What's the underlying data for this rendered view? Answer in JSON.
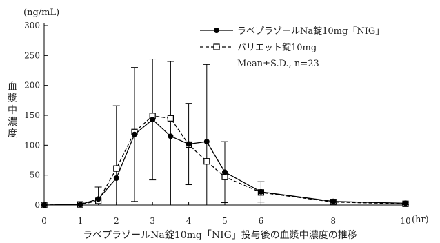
{
  "chart_data": {
    "type": "line",
    "title": "ラベプラゾールNa錠10mg「NIG」投与後の血漿中濃度の推移",
    "ylabel": "血漿中濃度",
    "y_unit": "(ng/mL)",
    "x_unit": "(hr)",
    "xlim": [
      0,
      10
    ],
    "ylim": [
      0,
      300
    ],
    "x_ticks": [
      0,
      1,
      2,
      3,
      4,
      5,
      6,
      8,
      10
    ],
    "y_ticks": [
      0,
      50,
      100,
      150,
      200,
      250,
      300
    ],
    "grid": false,
    "legend_position": "top-right",
    "legend_note": "Mean±S.D., n=23",
    "series": [
      {
        "name": "ラベプラゾールNa錠10mg「NIG」",
        "marker": "filled-circle",
        "line": "solid",
        "x": [
          0,
          1,
          1.5,
          2,
          2.5,
          3,
          3.5,
          4,
          4.5,
          5,
          6,
          8,
          10
        ],
        "y": [
          0,
          1,
          10,
          45,
          118,
          143,
          115,
          102,
          106,
          55,
          22,
          6,
          3
        ],
        "err": [
          0,
          3,
          20,
          121,
          112,
          101,
          125,
          68,
          129,
          51,
          17,
          3,
          2
        ]
      },
      {
        "name": "パリエット錠10mg",
        "marker": "open-square",
        "line": "dashed",
        "x": [
          0,
          1,
          1.5,
          2,
          2.5,
          3,
          3.5,
          4,
          4.5,
          5,
          6,
          8,
          10
        ],
        "y": [
          0,
          1,
          7,
          61,
          122,
          149,
          145,
          101,
          73,
          47,
          21,
          5,
          2
        ],
        "err": [
          0,
          0,
          0,
          0,
          0,
          0,
          0,
          0,
          0,
          0,
          0,
          0,
          0
        ]
      }
    ]
  }
}
